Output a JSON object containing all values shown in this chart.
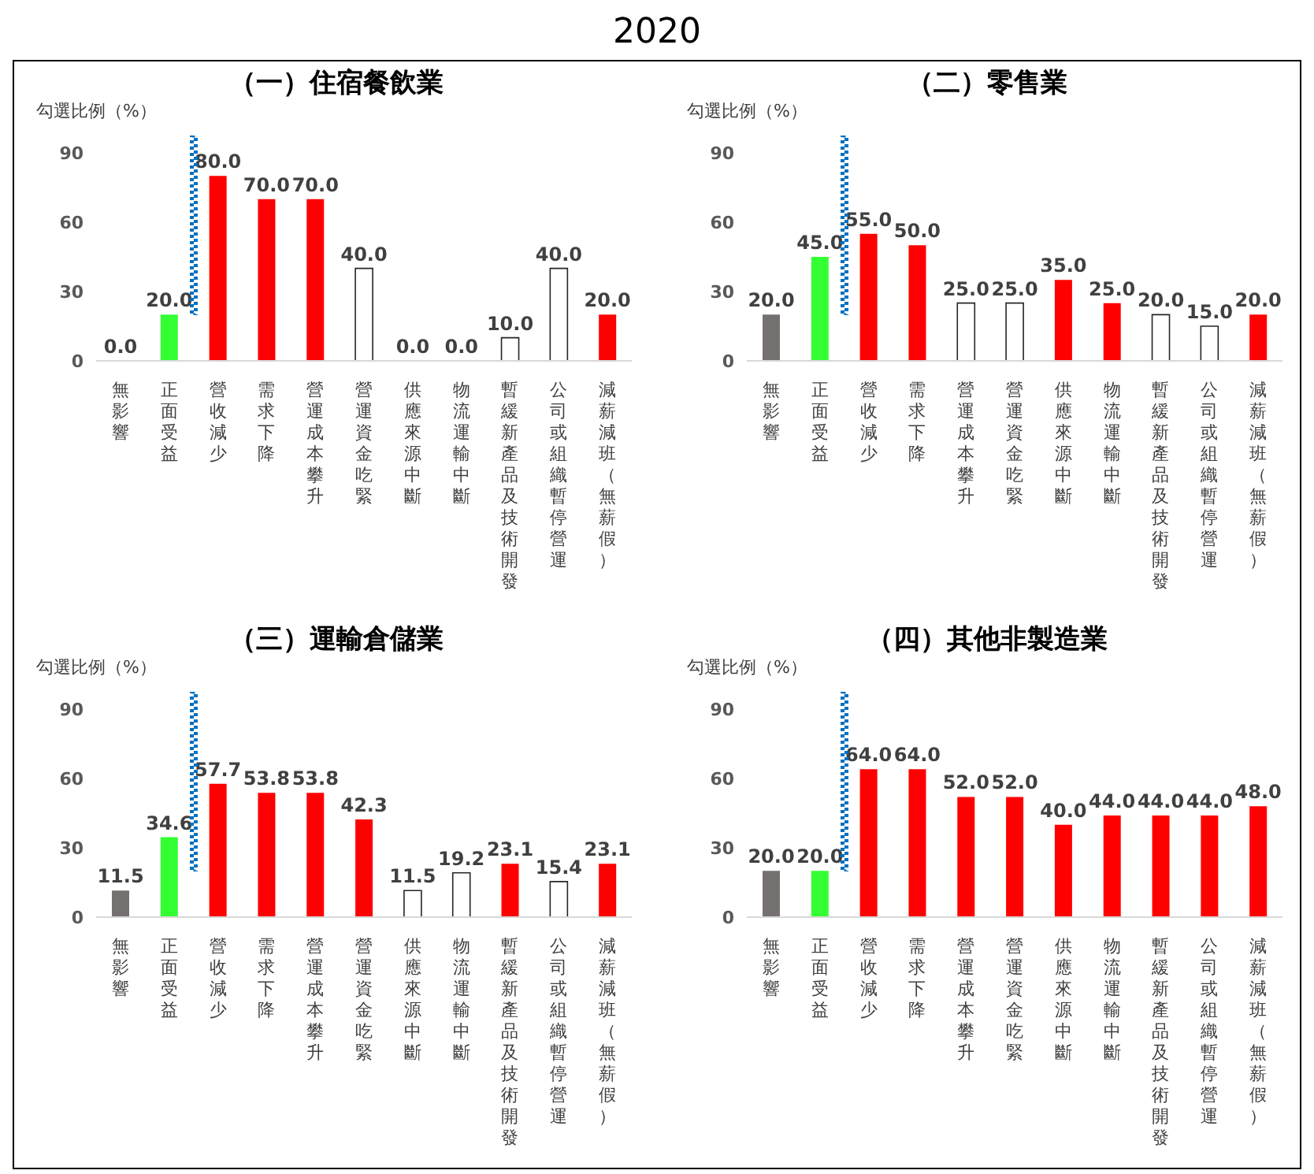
{
  "chart_data": [
    {
      "type": "bar",
      "title": "（一）住宿餐飲業",
      "ylabel": "勾選比例（%）",
      "annotations": [
        "2020"
      ],
      "categories": [
        "無影響",
        "正面受益",
        "營收減少",
        "需求下降",
        "營運成本攀升",
        "營運資金吃緊",
        "供應來源中斷",
        "物流運輸中斷",
        "暫緩新產品及技術開發",
        "公司或組織暫停營運",
        "減薪減班（無薪假）"
      ],
      "values": [
        0,
        20,
        80,
        70,
        70,
        40,
        0,
        0,
        10,
        40,
        20
      ],
      "value_labels": [
        "0.0",
        "20.0",
        "80.0",
        "70.0",
        "70.0",
        "40.0",
        "0.0",
        "0.0",
        "10.0",
        "40.0",
        "20.0"
      ],
      "colors": [
        "#767171",
        "#33ff33",
        "#ff0000",
        "#ff0000",
        "#ff0000",
        "#ffffff",
        "#ffffff",
        "#ffffff",
        "#ffffff",
        "#ffffff",
        "#ff0000"
      ],
      "ylim": [
        0,
        90
      ],
      "yticks": [
        0,
        30,
        60,
        90
      ],
      "grid": false,
      "legend": false
    },
    {
      "type": "bar",
      "title": "（二）零售業",
      "ylabel": "勾選比例（%）",
      "categories": [
        "無影響",
        "正面受益",
        "營收減少",
        "需求下降",
        "營運成本攀升",
        "營運資金吃緊",
        "供應來源中斷",
        "物流運輸中斷",
        "暫緩新產品及技術開發",
        "公司或組織暫停營運",
        "減薪減班（無薪假）"
      ],
      "values": [
        20,
        45,
        55,
        50,
        25,
        25,
        35,
        25,
        20,
        15,
        20
      ],
      "value_labels": [
        "20.0",
        "45.0",
        "55.0",
        "50.0",
        "25.0",
        "25.0",
        "35.0",
        "25.0",
        "20.0",
        "15.0",
        "20.0"
      ],
      "colors": [
        "#767171",
        "#33ff33",
        "#ff0000",
        "#ff0000",
        "#ffffff",
        "#ffffff",
        "#ff0000",
        "#ff0000",
        "#ffffff",
        "#ffffff",
        "#ff0000"
      ],
      "ylim": [
        0,
        90
      ],
      "yticks": [
        0,
        30,
        60,
        90
      ],
      "grid": false,
      "legend": false
    },
    {
      "type": "bar",
      "title": "（三）運輸倉儲業",
      "ylabel": "勾選比例（%）",
      "categories": [
        "無影響",
        "正面受益",
        "營收減少",
        "需求下降",
        "營運成本攀升",
        "營運資金吃緊",
        "供應來源中斷",
        "物流運輸中斷",
        "暫緩新產品及技術開發",
        "公司或組織暫停營運",
        "減薪減班（無薪假）"
      ],
      "values": [
        11.5,
        34.6,
        57.7,
        53.8,
        53.8,
        42.3,
        11.5,
        19.2,
        23.1,
        15.4,
        23.1
      ],
      "value_labels": [
        "11.5",
        "34.6",
        "57.7",
        "53.8",
        "53.8",
        "42.3",
        "11.5",
        "19.2",
        "23.1",
        "15.4",
        "23.1"
      ],
      "colors": [
        "#767171",
        "#33ff33",
        "#ff0000",
        "#ff0000",
        "#ff0000",
        "#ff0000",
        "#ffffff",
        "#ffffff",
        "#ff0000",
        "#ffffff",
        "#ff0000"
      ],
      "ylim": [
        0,
        90
      ],
      "yticks": [
        0,
        30,
        60,
        90
      ],
      "grid": false,
      "legend": false
    },
    {
      "type": "bar",
      "title": "（四）其他非製造業",
      "ylabel": "勾選比例（%）",
      "categories": [
        "無影響",
        "正面受益",
        "營收減少",
        "需求下降",
        "營運成本攀升",
        "營運資金吃緊",
        "供應來源中斷",
        "物流運輸中斷",
        "暫緩新產品及技術開發",
        "公司或組織暫停營運",
        "減薪減班（無薪假）"
      ],
      "values": [
        20,
        20,
        64,
        64,
        52,
        52,
        40,
        44,
        44,
        44,
        48
      ],
      "value_labels": [
        "20.0",
        "20.0",
        "64.0",
        "64.0",
        "52.0",
        "52.0",
        "40.0",
        "44.0",
        "44.0",
        "44.0",
        "48.0"
      ],
      "colors": [
        "#767171",
        "#33ff33",
        "#ff0000",
        "#ff0000",
        "#ff0000",
        "#ff0000",
        "#ff0000",
        "#ff0000",
        "#ff0000",
        "#ff0000",
        "#ff0000"
      ],
      "ylim": [
        0,
        90
      ],
      "yticks": [
        0,
        30,
        60,
        90
      ],
      "grid": false,
      "legend": false
    }
  ]
}
